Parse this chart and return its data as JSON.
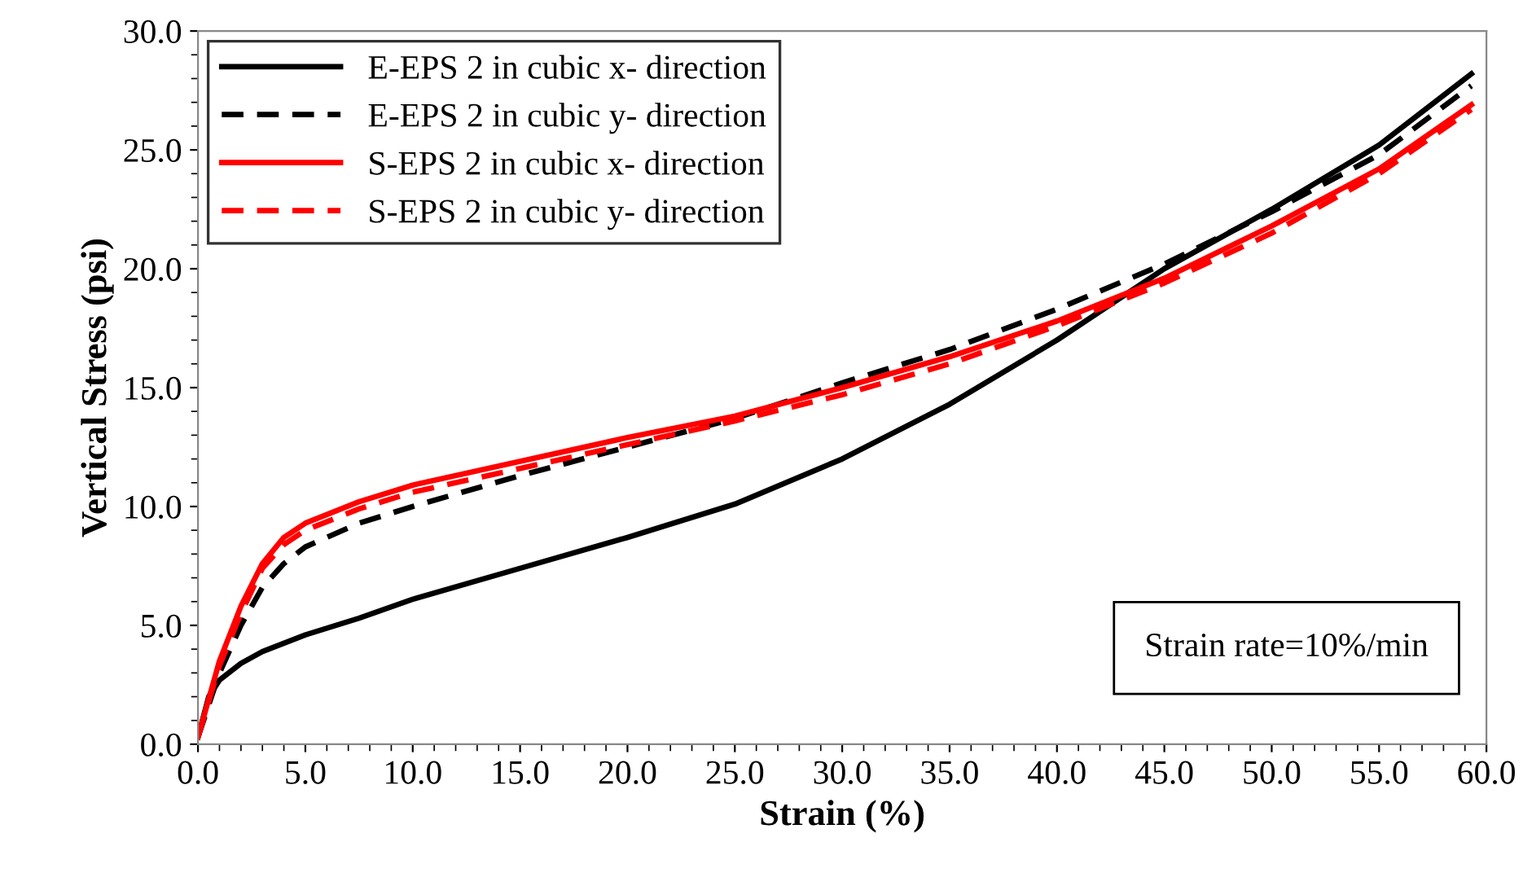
{
  "chart_data": {
    "type": "line",
    "xlabel": "Strain (%)",
    "ylabel": "Vertical Stress (psi)",
    "xlim": [
      0,
      60
    ],
    "ylim": [
      0,
      30
    ],
    "xticks": [
      {
        "value": 0,
        "label": "0.0"
      },
      {
        "value": 5,
        "label": "5.0"
      },
      {
        "value": 10,
        "label": "10.0"
      },
      {
        "value": 15,
        "label": "15.0"
      },
      {
        "value": 20,
        "label": "20.0"
      },
      {
        "value": 25,
        "label": "25.0"
      },
      {
        "value": 30,
        "label": "30.0"
      },
      {
        "value": 35,
        "label": "35.0"
      },
      {
        "value": 40,
        "label": "40.0"
      },
      {
        "value": 45,
        "label": "45.0"
      },
      {
        "value": 50,
        "label": "50.0"
      },
      {
        "value": 55,
        "label": "55.0"
      },
      {
        "value": 60,
        "label": "60.0"
      }
    ],
    "yticks": [
      {
        "value": 0,
        "label": "0.0"
      },
      {
        "value": 5,
        "label": "5.0"
      },
      {
        "value": 10,
        "label": "10.0"
      },
      {
        "value": 15,
        "label": "15.0"
      },
      {
        "value": 20,
        "label": "20.0"
      },
      {
        "value": 25,
        "label": "25.0"
      },
      {
        "value": 30,
        "label": "30.0"
      }
    ],
    "grid": false,
    "legend": "top left",
    "marker": "none",
    "annotations": [
      "Strain rate=10%/min"
    ],
    "series": [
      {
        "name": "E-EPS 2 in cubic x- direction",
        "color": "#000000",
        "line_style": "solid",
        "x": [
          0,
          0.5,
          1,
          2,
          3,
          5,
          7.5,
          10,
          15,
          20,
          25,
          30,
          35,
          40,
          45,
          50,
          55,
          59.3
        ],
        "values": [
          0.3,
          2,
          2.7,
          3.4,
          3.9,
          4.6,
          5.3,
          6.1,
          7.4,
          8.7,
          10.1,
          12.0,
          14.3,
          17.0,
          20.0,
          22.5,
          25.2,
          28.2
        ]
      },
      {
        "name": "E-EPS 2 in cubic y- direction",
        "color": "#000000",
        "line_style": "dashed",
        "x": [
          0,
          1,
          2,
          3,
          4,
          5,
          7.5,
          10,
          15,
          20,
          25,
          30,
          35,
          40,
          45,
          50,
          55,
          59.3
        ],
        "values": [
          0.3,
          3,
          5,
          6.6,
          7.6,
          8.3,
          9.3,
          10.0,
          11.3,
          12.5,
          13.7,
          15.2,
          16.6,
          18.3,
          20.2,
          22.4,
          24.8,
          27.7
        ]
      },
      {
        "name": "S-EPS 2 in cubic x- direction",
        "color": "#ff0000",
        "line_style": "solid",
        "x": [
          0,
          1,
          2,
          3,
          4,
          5,
          7.5,
          10,
          15,
          20,
          25,
          30,
          35,
          40,
          45,
          50,
          55,
          59.3
        ],
        "values": [
          0.3,
          3.5,
          5.8,
          7.6,
          8.7,
          9.3,
          10.2,
          10.9,
          11.9,
          12.9,
          13.8,
          15.0,
          16.3,
          17.8,
          19.6,
          21.8,
          24.2,
          26.9
        ]
      },
      {
        "name": "S-EPS 2 in cubic y- direction",
        "color": "#ff0000",
        "line_style": "dashed",
        "x": [
          0,
          1,
          2,
          3,
          4,
          5,
          7.5,
          10,
          15,
          20,
          25,
          30,
          35,
          40,
          45,
          50,
          55,
          59.3
        ],
        "values": [
          0.3,
          3.3,
          5.5,
          7.4,
          8.4,
          9.0,
          9.9,
          10.6,
          11.6,
          12.6,
          13.6,
          14.7,
          16.0,
          17.6,
          19.4,
          21.5,
          24.0,
          26.7
        ]
      }
    ]
  }
}
